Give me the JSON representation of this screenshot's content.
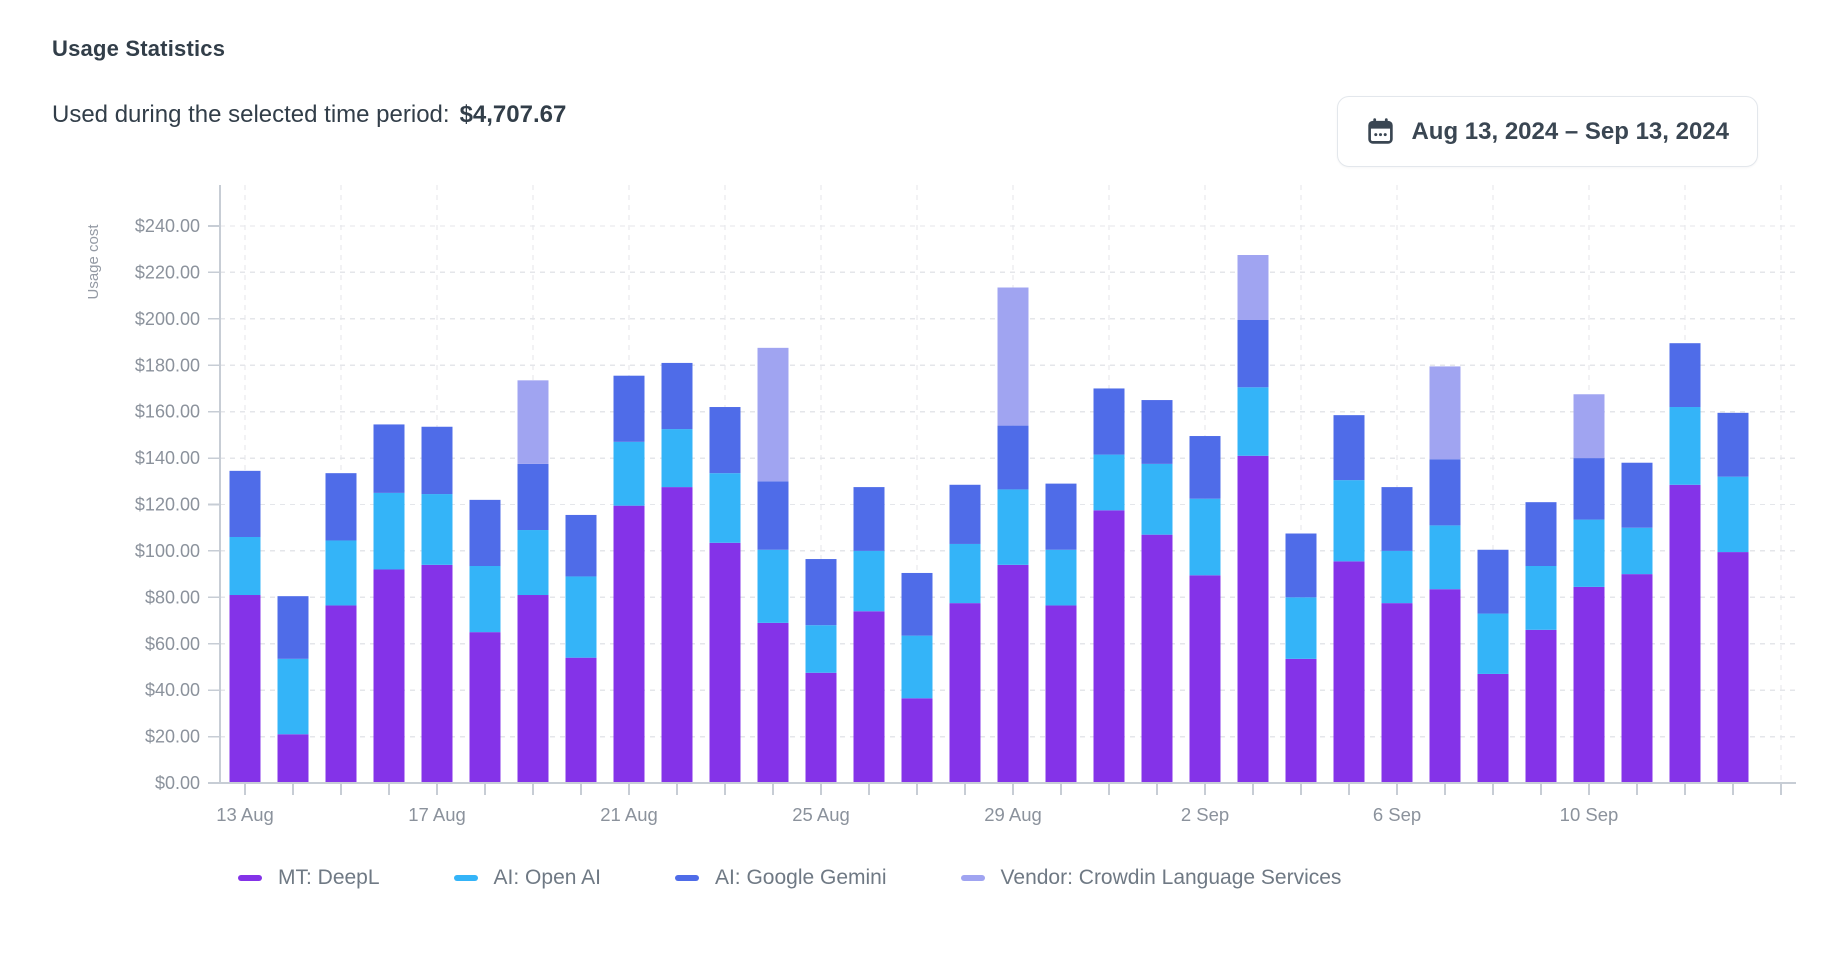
{
  "header": {
    "title": "Usage Statistics",
    "subtitle_label": "Used during the selected time period:",
    "subtitle_amount": "$4,707.67"
  },
  "date_picker": {
    "icon": "calendar-icon",
    "label": "Aug 13, 2024 – Sep 13, 2024"
  },
  "chart_data": {
    "type": "bar",
    "stacked": true,
    "title": "",
    "xlabel": "",
    "ylabel": "Usage cost",
    "ylim": [
      0,
      240
    ],
    "ytick_step": 20,
    "ytick_labels": [
      "$0.00",
      "$20.00",
      "$40.00",
      "$60.00",
      "$80.00",
      "$100.00",
      "$120.00",
      "$140.00",
      "$160.00",
      "$180.00",
      "$200.00",
      "$220.00",
      "$240.00"
    ],
    "grid": true,
    "grid_style": "dashed",
    "vertical_grid_every_days": 2,
    "legend_position": "bottom",
    "categories": [
      "13 Aug",
      "14 Aug",
      "15 Aug",
      "16 Aug",
      "17 Aug",
      "18 Aug",
      "19 Aug",
      "20 Aug",
      "21 Aug",
      "22 Aug",
      "23 Aug",
      "24 Aug",
      "25 Aug",
      "26 Aug",
      "27 Aug",
      "28 Aug",
      "29 Aug",
      "30 Aug",
      "31 Aug",
      "1 Sep",
      "2 Sep",
      "3 Sep",
      "4 Sep",
      "5 Sep",
      "6 Sep",
      "7 Sep",
      "8 Sep",
      "9 Sep",
      "10 Sep",
      "11 Sep",
      "12 Sep",
      "13 Sep"
    ],
    "xticks": [
      {
        "index": 0,
        "label": "13 Aug"
      },
      {
        "index": 4,
        "label": "17 Aug"
      },
      {
        "index": 8,
        "label": "21 Aug"
      },
      {
        "index": 12,
        "label": "25 Aug"
      },
      {
        "index": 16,
        "label": "29 Aug"
      },
      {
        "index": 20,
        "label": "2 Sep"
      },
      {
        "index": 24,
        "label": "6 Sep"
      },
      {
        "index": 28,
        "label": "10 Sep"
      }
    ],
    "series": [
      {
        "name": "MT: DeepL",
        "color": "#8433e8",
        "values": [
          81,
          21,
          76.5,
          92,
          94,
          65,
          81,
          54,
          119.5,
          127.5,
          103.5,
          69,
          47.5,
          74,
          36.5,
          77.5,
          94,
          76.5,
          117.5,
          107,
          89.5,
          141,
          53.5,
          95.5,
          77.5,
          83.5,
          47,
          66,
          84.5,
          90,
          128.5,
          99.5
        ]
      },
      {
        "name": "AI: Open AI",
        "color": "#34b4f8",
        "values": [
          25,
          32.5,
          28,
          33,
          30.5,
          28.5,
          28,
          35,
          27.5,
          25,
          30,
          31.5,
          20.5,
          26,
          27,
          25.5,
          32.5,
          24,
          24,
          30.5,
          33,
          29.5,
          26.5,
          35,
          22.5,
          27.5,
          26,
          27.5,
          29,
          20,
          33.5,
          32.5
        ]
      },
      {
        "name": "AI: Google Gemini",
        "color": "#4f6ce8",
        "values": [
          28.5,
          27,
          29,
          29.5,
          29,
          28.5,
          28.5,
          26.5,
          28.5,
          28.5,
          28.5,
          29.5,
          28.5,
          27.5,
          27,
          25.5,
          27.5,
          28.5,
          28.5,
          27.5,
          27,
          29,
          27.5,
          28,
          27.5,
          28.5,
          27.5,
          27.5,
          26.5,
          28,
          27.5,
          27.5
        ]
      },
      {
        "name": "Vendor: Crowdin Language Services",
        "color": "#a0a4f1",
        "values": [
          0,
          0,
          0,
          0,
          0,
          0,
          36,
          0,
          0,
          0,
          0,
          57.5,
          0,
          0,
          0,
          0,
          59.5,
          0,
          0,
          0,
          0,
          28,
          0,
          0,
          0,
          40,
          0,
          0,
          27.5,
          0,
          0,
          0
        ]
      }
    ],
    "period_total": "$4,707.67"
  },
  "theme": {
    "grid_color": "#e4e6ea",
    "axis_color": "#c7cdd5",
    "tick_label_color": "#8b929c",
    "axis_title_color": "#949aa4",
    "legend_text_color": "#6f7984",
    "title_color": "#323e49",
    "button_border": "#e3e7ec",
    "button_text": "#3a4652"
  }
}
